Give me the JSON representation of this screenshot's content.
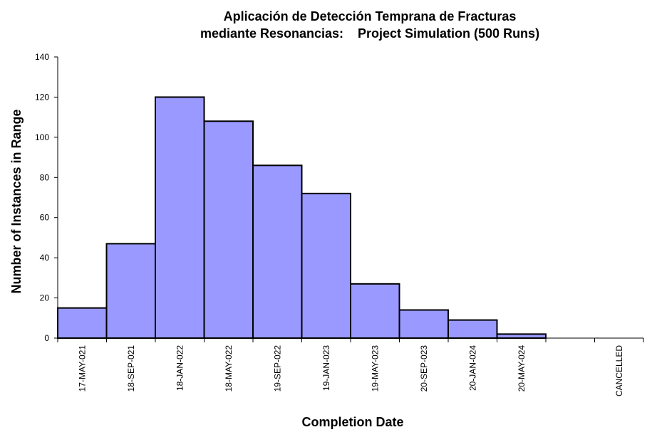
{
  "chart_data": {
    "type": "bar",
    "title_line1": "Aplicación de Detección Temprana de Fracturas",
    "title_line2": "mediante Resonancias:    Project Simulation (500 Runs)",
    "xlabel": "Completion Date",
    "ylabel": "Number of Instances in Range",
    "categories": [
      "17-MAY-021",
      "18-SEP-021",
      "18-JAN-022",
      "18-MAY-022",
      "19-SEP-022",
      "19-JAN-023",
      "19-MAY-023",
      "20-SEP-023",
      "20-JAN-024",
      "20-MAY-024",
      "",
      "CANCELLED"
    ],
    "values": [
      15,
      47,
      120,
      108,
      86,
      72,
      27,
      14,
      9,
      2,
      0,
      0
    ],
    "ylim": [
      0,
      140
    ],
    "yticks": [
      0,
      20,
      40,
      60,
      80,
      100,
      120,
      140
    ],
    "grid": false,
    "legend": "none",
    "bar_color": "#9999ff",
    "bar_edge_color": "#000000"
  }
}
